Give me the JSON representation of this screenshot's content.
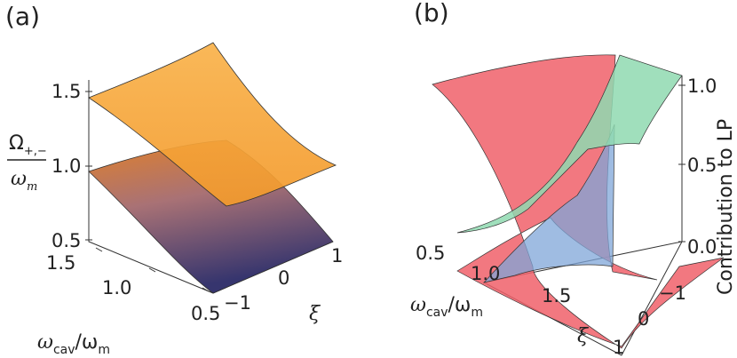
{
  "figure": {
    "panel_a": {
      "label": "(a)",
      "z_axis_label_num": "Ω",
      "z_axis_label_sub": "+,−",
      "z_axis_label_den": "ω",
      "z_axis_label_den_sub": "m",
      "x_axis_label": "ω",
      "x_axis_label_sub": "cav",
      "x_axis_label_rest": "/ω",
      "x_axis_label_rest_sub": "m",
      "y_axis_label": "ξ",
      "z_ticks": [
        "1.5",
        "1.0",
        "0.5"
      ],
      "x_ticks": [
        "1.5",
        "1.0",
        "0.5"
      ],
      "y_ticks": [
        "−1",
        "0",
        "1"
      ]
    },
    "panel_b": {
      "label": "(b)",
      "z_axis_label": "Contribution to LP",
      "x_axis_label": "ω",
      "x_axis_label_sub": "cav",
      "x_axis_label_rest": "/ω",
      "x_axis_label_rest_sub": "m",
      "y_axis_label": "ξ",
      "z_ticks": [
        "1.0",
        "0.5",
        "0.0"
      ],
      "x_ticks": [
        "0.5",
        "1.0",
        "1.5"
      ],
      "y_ticks": [
        "−1",
        "0",
        "1"
      ]
    },
    "colors": {
      "upper_surface": "#f6a93b",
      "lower_surface_top": "#e07820",
      "lower_surface_bottom": "#2e2a6a",
      "red_surface": "#f0606a",
      "green_surface": "#8fd9b0",
      "blue_surface": "#7fa6d8"
    }
  }
}
